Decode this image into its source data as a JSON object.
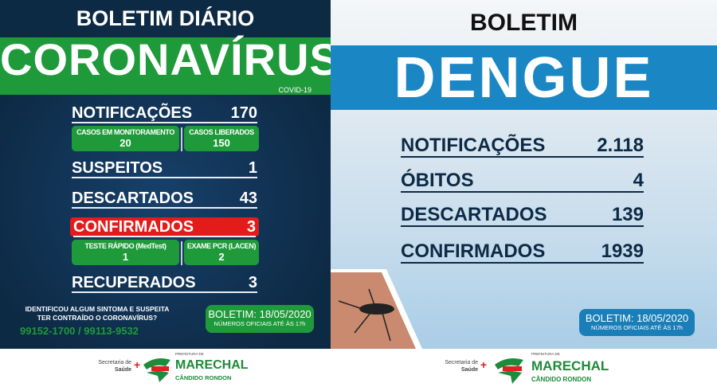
{
  "covid": {
    "title": "BOLETIM DIÁRIO",
    "banner": "CORONAVÍRUS",
    "subtitle": "COVID-19",
    "notificacoes": {
      "label": "NOTIFICAÇÕES",
      "value": "170"
    },
    "monitoramento": {
      "label": "CASOS EM MONITORAMENTO",
      "value": "20"
    },
    "liberados": {
      "label": "CASOS LIBERADOS",
      "value": "150"
    },
    "suspeitos": {
      "label": "SUSPEITOS",
      "value": "1"
    },
    "descartados": {
      "label": "DESCARTADOS",
      "value": "43"
    },
    "confirmados": {
      "label": "CONFIRMADOS",
      "value": "3"
    },
    "teste_rapido": {
      "label": "TESTE RÁPIDO (MedTest)",
      "value": "1"
    },
    "pcr": {
      "label": "EXAME PCR (LACEN)",
      "value": "2"
    },
    "recuperados": {
      "label": "RECUPERADOS",
      "value": "3"
    },
    "sintoma_line1": "IDENTIFICOU ALGUM SINTOMA E SUSPEITA",
    "sintoma_line2": "TER CONTRAÍDO O CORONAVÍRUS?",
    "phones": "99152-1700 / 99113-9532",
    "boletim_date": "BOLETIM: 18/05/2020",
    "boletim_note": "NÚMEROS OFICIAIS ATÉ ÀS 17h"
  },
  "dengue": {
    "title": "BOLETIM",
    "banner": "DENGUE",
    "rows": [
      {
        "label": "NOTIFICAÇÕES",
        "value": "2.118"
      },
      {
        "label": "ÓBITOS",
        "value": "4"
      },
      {
        "label": "DESCARTADOS",
        "value": "139"
      },
      {
        "label": "CONFIRMADOS",
        "value": "1939"
      }
    ],
    "boletim_date": "BOLETIM: 18/05/2020",
    "boletim_note": "NÚMEROS OFICIAIS ATÉ ÀS 17h"
  },
  "footer": {
    "secretaria": "Secretaria de",
    "saude": "Saúde",
    "prefeitura": "PREFEITURA DE",
    "city1": "MARECHAL",
    "city2": "CÂNDIDO RONDON"
  },
  "colors": {
    "navy": "#0d2a45",
    "green": "#1f9a3a",
    "red": "#e41b1b",
    "blue": "#1a87c4"
  }
}
